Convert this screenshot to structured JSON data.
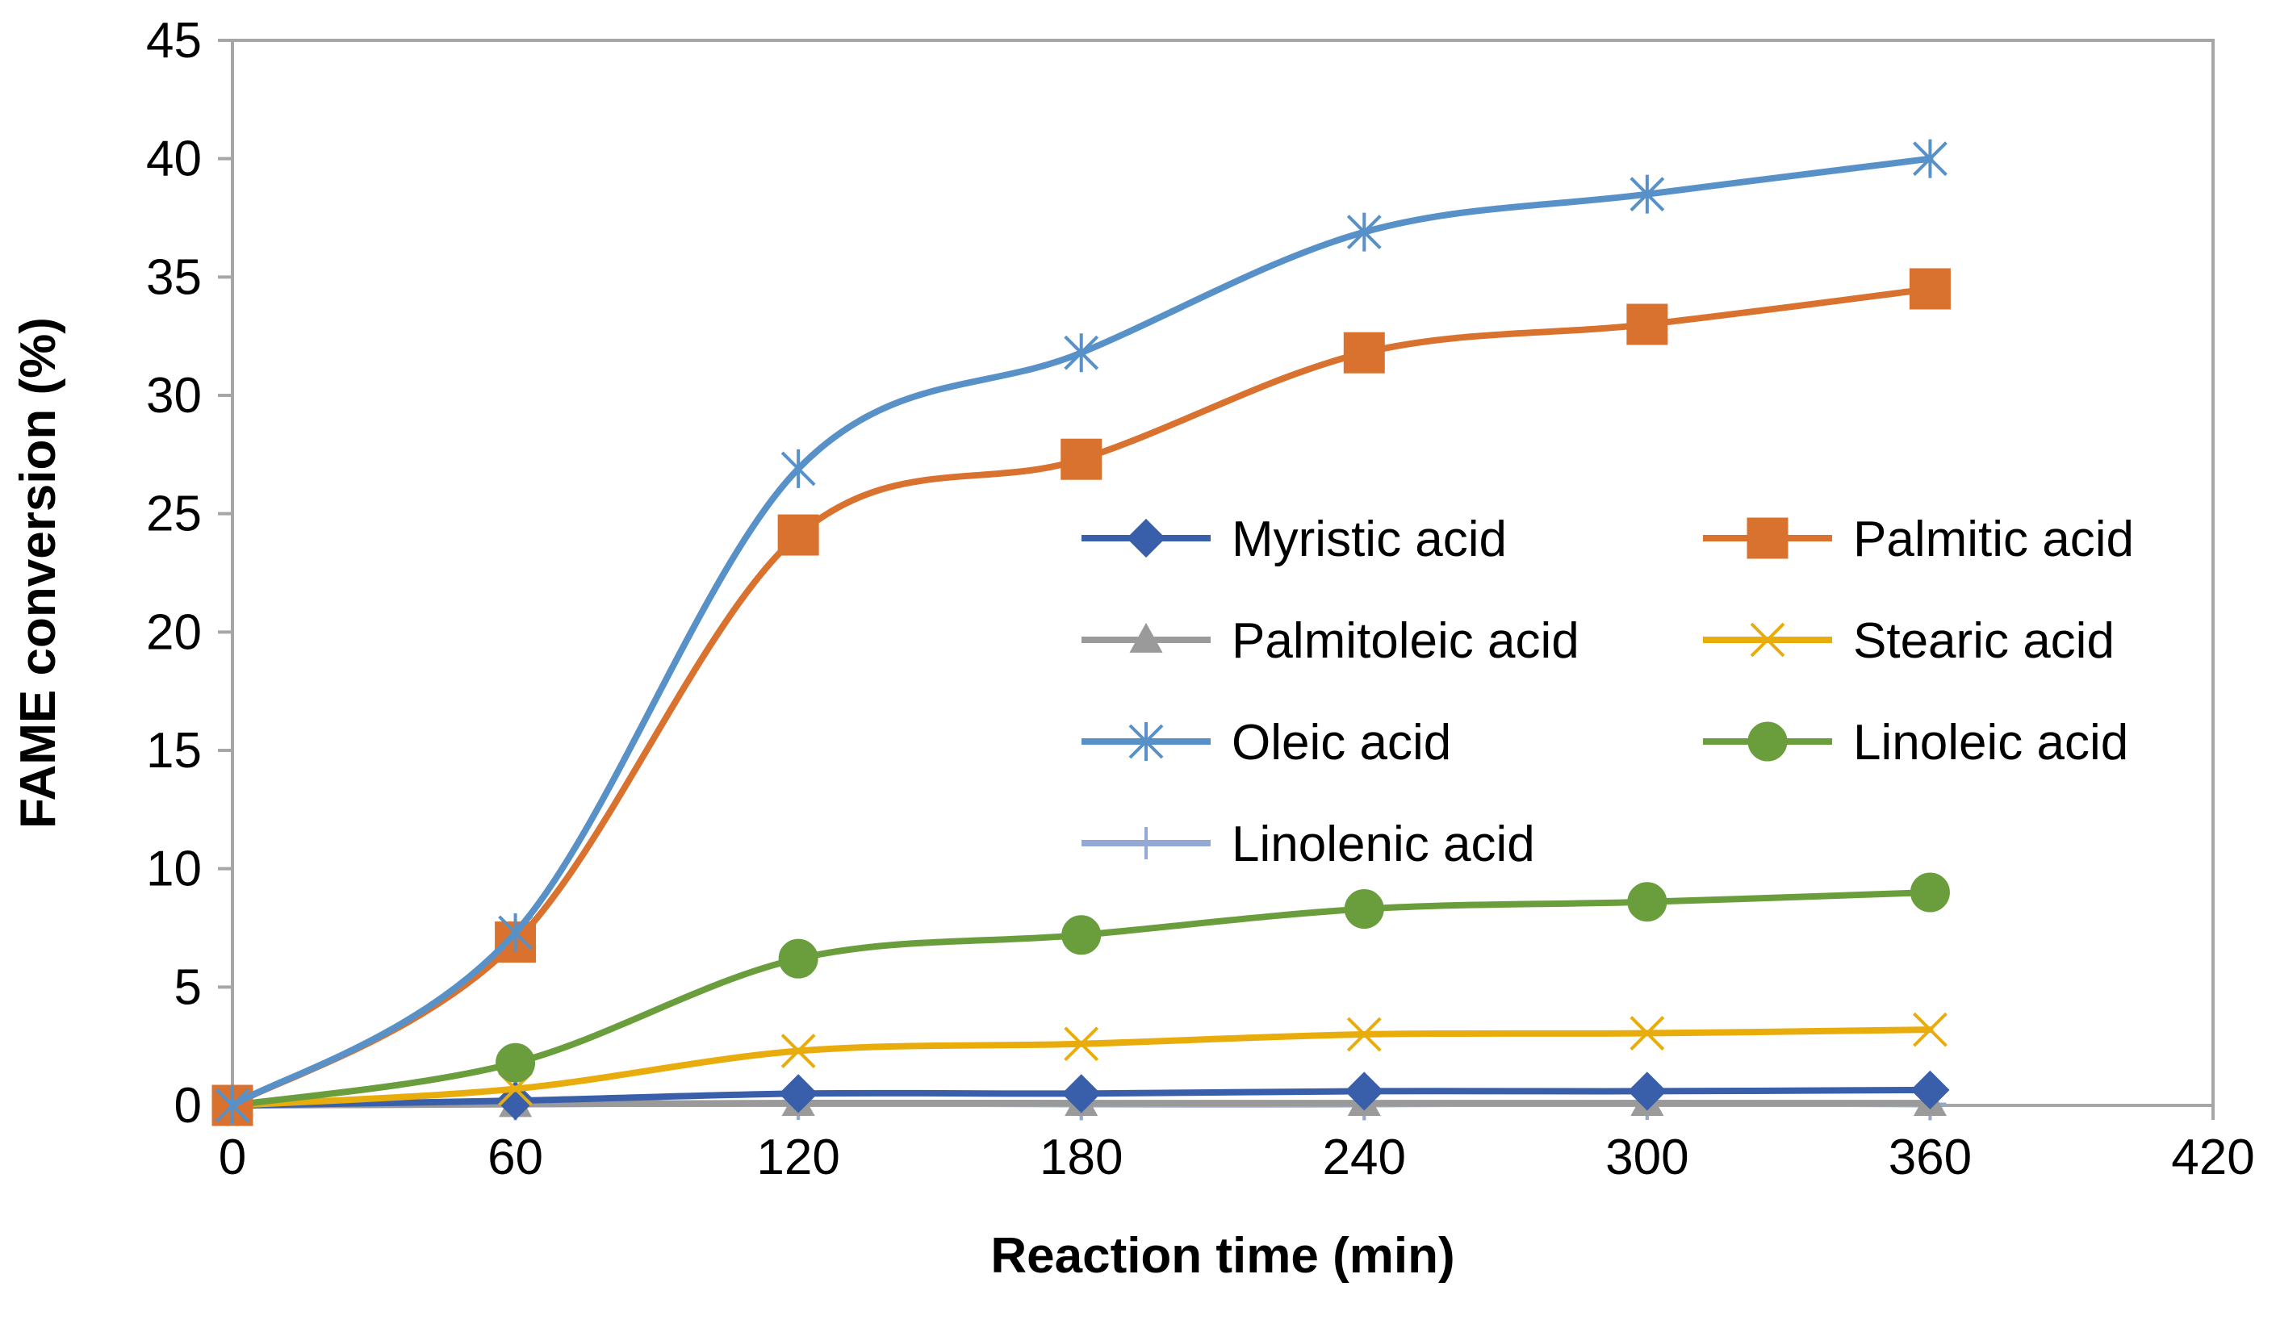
{
  "chart_data": {
    "type": "line",
    "title": "",
    "xlabel": "Reaction time (min)",
    "ylabel": "FAME conversion (%)",
    "xlim": [
      0,
      420
    ],
    "ylim": [
      0,
      45
    ],
    "xticks": [
      0,
      60,
      120,
      180,
      240,
      300,
      360,
      420
    ],
    "yticks": [
      0,
      5,
      10,
      15,
      20,
      25,
      30,
      35,
      40,
      45
    ],
    "grid": false,
    "legend_position": "inside-center-right",
    "x": [
      0,
      60,
      120,
      180,
      240,
      300,
      360
    ],
    "series": [
      {
        "name": "Myristic acid",
        "marker": "diamond",
        "color": "#3A5FAA",
        "values": [
          0,
          0.2,
          0.5,
          0.5,
          0.6,
          0.6,
          0.65
        ]
      },
      {
        "name": "Palmitic acid",
        "marker": "square",
        "color": "#D9722E",
        "values": [
          0,
          6.9,
          24.1,
          27.3,
          31.8,
          33.0,
          34.5
        ]
      },
      {
        "name": "Palmitoleic acid",
        "marker": "triangle",
        "color": "#9A9A9A",
        "values": [
          0,
          0.05,
          0.1,
          0.1,
          0.1,
          0.1,
          0.1
        ]
      },
      {
        "name": "Stearic acid",
        "marker": "x",
        "color": "#E8AD0C",
        "values": [
          0,
          0.7,
          2.3,
          2.6,
          3.0,
          3.05,
          3.2
        ]
      },
      {
        "name": "Oleic acid",
        "marker": "asterisk",
        "color": "#5891C8",
        "values": [
          0,
          7.3,
          26.9,
          31.8,
          36.9,
          38.5,
          40.0
        ]
      },
      {
        "name": "Linoleic acid",
        "marker": "circle",
        "color": "#6A9E3D",
        "values": [
          0,
          1.8,
          6.2,
          7.2,
          8.3,
          8.6,
          9.0
        ]
      },
      {
        "name": "Linolenic acid",
        "marker": "plus",
        "color": "#92A9D6",
        "values": [
          0,
          0.05,
          0.1,
          0.05,
          0.05,
          0.1,
          0.05
        ]
      }
    ]
  }
}
